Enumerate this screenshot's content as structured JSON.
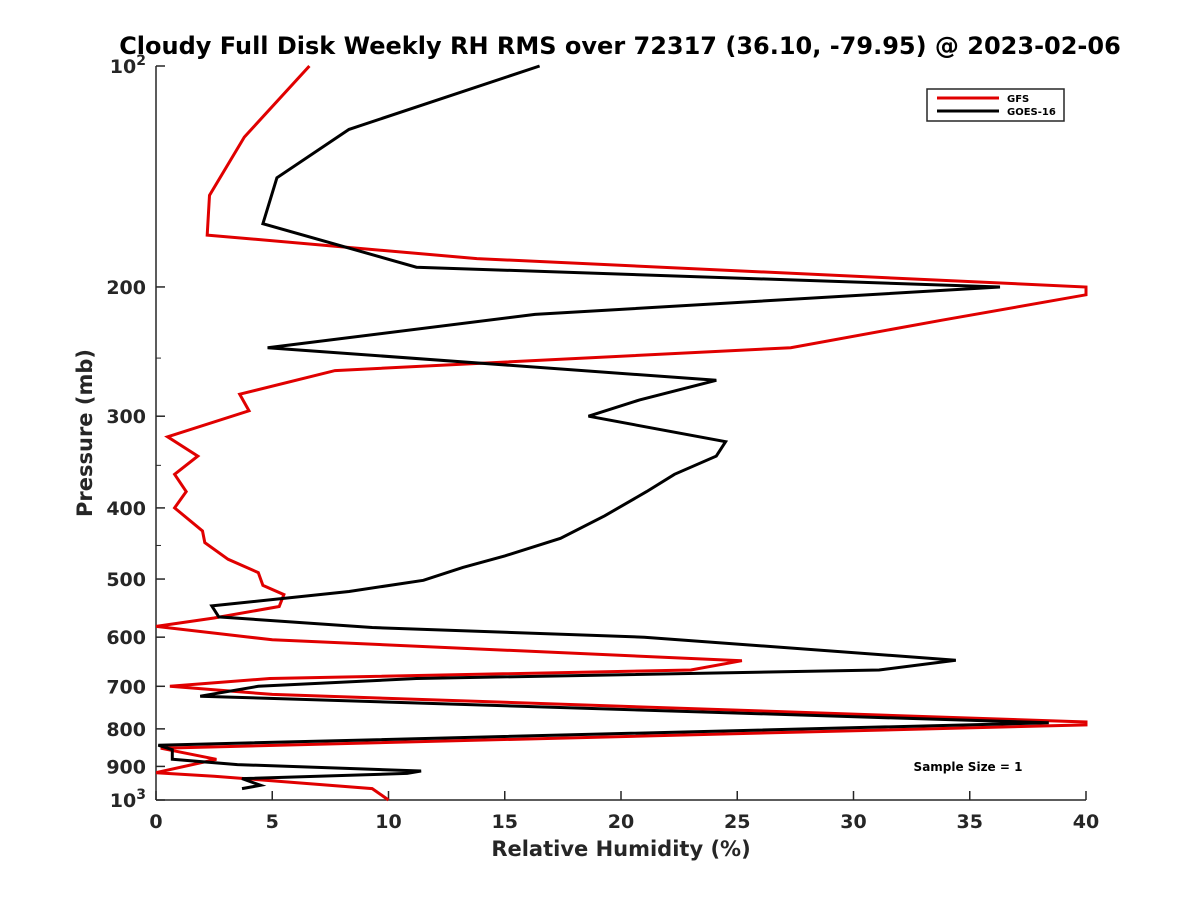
{
  "chart_data": {
    "type": "line",
    "title": "Cloudy Full Disk Weekly RH RMS over 72317 (36.10, -79.95) @ 2023-02-06",
    "xlabel": "Relative Humidity (%)",
    "ylabel": "Pressure (mb)",
    "xlim": [
      0,
      40
    ],
    "ylim": [
      100,
      1000
    ],
    "yscale": "log",
    "y_reversed": true,
    "grid": false,
    "legend_position": "top-right",
    "xticks": [
      "0",
      "5",
      "10",
      "15",
      "20",
      "25",
      "30",
      "35",
      "40"
    ],
    "xtick_values": [
      0,
      5,
      10,
      15,
      20,
      25,
      30,
      35,
      40
    ],
    "yticks": [
      {
        "value": 100,
        "base": "10",
        "exp": "2"
      },
      {
        "value": 200,
        "label": "200"
      },
      {
        "value": 300,
        "label": "300"
      },
      {
        "value": 400,
        "label": "400"
      },
      {
        "value": 500,
        "label": "500"
      },
      {
        "value": 600,
        "label": "600"
      },
      {
        "value": 700,
        "label": "700"
      },
      {
        "value": 800,
        "label": "800"
      },
      {
        "value": 900,
        "label": "900"
      },
      {
        "value": 1000,
        "base": "10",
        "exp": "3"
      }
    ],
    "annotation": "Sample Size = 1",
    "series": [
      {
        "name": "GFS",
        "color": "#e00000",
        "points": [
          [
            6.6,
            100
          ],
          [
            3.8,
            125
          ],
          [
            2.3,
            150
          ],
          [
            2.2,
            170
          ],
          [
            13.8,
            183
          ],
          [
            40,
            200
          ],
          [
            40,
            205
          ],
          [
            33.8,
            222
          ],
          [
            27.3,
            242
          ],
          [
            7.7,
            260
          ],
          [
            3.6,
            280
          ],
          [
            4.0,
            295
          ],
          [
            0.5,
            320
          ],
          [
            1.8,
            340
          ],
          [
            0.8,
            360
          ],
          [
            1.3,
            380
          ],
          [
            0.8,
            400
          ],
          [
            2.0,
            430
          ],
          [
            2.1,
            446
          ],
          [
            3.1,
            470
          ],
          [
            4.4,
            490
          ],
          [
            4.6,
            510
          ],
          [
            5.5,
            525
          ],
          [
            5.3,
            545
          ],
          [
            2.5,
            565
          ],
          [
            0,
            580
          ],
          [
            5.0,
            605
          ],
          [
            25.2,
            646
          ],
          [
            23.0,
            665
          ],
          [
            4.9,
            683
          ],
          [
            0.6,
            700
          ],
          [
            5.0,
            718
          ],
          [
            40,
            783
          ],
          [
            40,
            790
          ],
          [
            0.2,
            850
          ],
          [
            2.6,
            880
          ],
          [
            0,
            918
          ],
          [
            2.5,
            928
          ],
          [
            9.3,
            965
          ],
          [
            10,
            1000
          ]
        ]
      },
      {
        "name": "GOES-16",
        "color": "#000000",
        "points": [
          [
            16.5,
            100
          ],
          [
            8.3,
            122
          ],
          [
            5.2,
            142
          ],
          [
            4.6,
            164
          ],
          [
            11.2,
            188
          ],
          [
            36.3,
            200
          ],
          [
            16.3,
            218
          ],
          [
            4.8,
            242
          ],
          [
            24.1,
            268
          ],
          [
            20.8,
            285
          ],
          [
            18.6,
            300
          ],
          [
            24.5,
            325
          ],
          [
            24.1,
            340
          ],
          [
            22.3,
            360
          ],
          [
            21.1,
            380
          ],
          [
            19.3,
            410
          ],
          [
            17.4,
            440
          ],
          [
            15.0,
            465
          ],
          [
            13.2,
            482
          ],
          [
            11.5,
            502
          ],
          [
            8.3,
            520
          ],
          [
            2.4,
            544
          ],
          [
            2.7,
            563
          ],
          [
            9.3,
            582
          ],
          [
            21.0,
            600
          ],
          [
            34.4,
            645
          ],
          [
            31.1,
            665
          ],
          [
            11.2,
            683
          ],
          [
            4.4,
            700
          ],
          [
            1.9,
            722
          ],
          [
            38.4,
            785
          ],
          [
            0.1,
            842
          ],
          [
            0.7,
            854
          ],
          [
            0.7,
            880
          ],
          [
            3.5,
            895
          ],
          [
            11.4,
            913
          ],
          [
            10.8,
            920
          ],
          [
            3.7,
            935
          ],
          [
            4.5,
            955
          ],
          [
            3.7,
            965
          ]
        ]
      }
    ]
  }
}
